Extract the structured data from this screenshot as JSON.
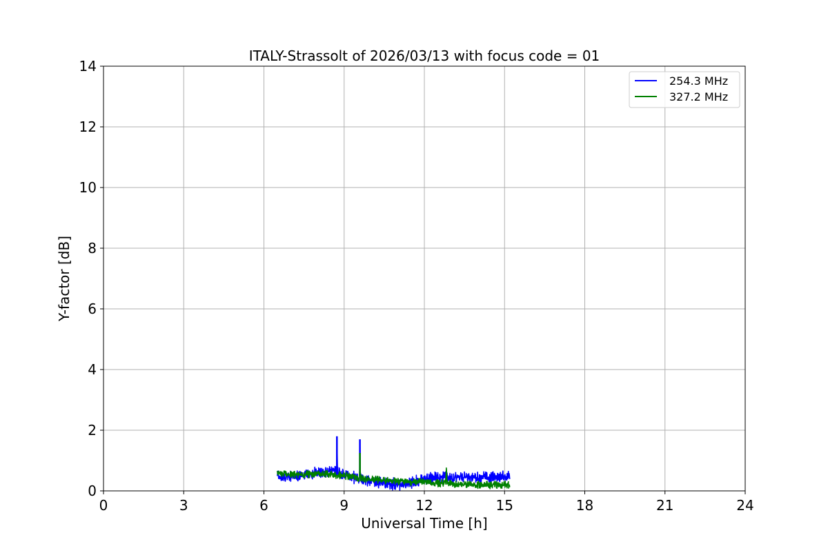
{
  "chart_data": {
    "type": "line",
    "title": "ITALY-Strassolt of 2026/03/13 with focus code = 01",
    "xlabel": "Universal Time [h]",
    "ylabel": "Y-factor [dB]",
    "xlim": [
      0,
      24
    ],
    "ylim": [
      0,
      14
    ],
    "xticks": [
      0,
      3,
      6,
      9,
      12,
      15,
      18,
      21,
      24
    ],
    "yticks": [
      0,
      2,
      4,
      6,
      8,
      10,
      12,
      14
    ],
    "grid": true,
    "legend_position": "top-right",
    "series": [
      {
        "name": "254.3 MHz",
        "color": "#0000ff",
        "x": [
          6.5,
          6.9,
          7.3,
          7.7,
          8.1,
          8.5,
          8.72,
          8.73,
          8.75,
          9.0,
          9.3,
          9.58,
          9.59,
          9.61,
          9.9,
          10.3,
          10.7,
          11.1,
          11.5,
          11.8,
          12.1,
          12.4,
          12.8,
          13.2,
          13.6,
          14.0,
          14.4,
          14.8,
          15.2
        ],
        "y": [
          0.5,
          0.45,
          0.5,
          0.55,
          0.6,
          0.65,
          0.65,
          1.8,
          0.65,
          0.55,
          0.45,
          0.4,
          1.7,
          0.4,
          0.35,
          0.3,
          0.25,
          0.2,
          0.25,
          0.35,
          0.4,
          0.45,
          0.45,
          0.45,
          0.45,
          0.45,
          0.45,
          0.45,
          0.45
        ],
        "spread": 0.22
      },
      {
        "name": "327.2 MHz",
        "color": "#008000",
        "x": [
          6.5,
          6.9,
          7.3,
          7.7,
          8.1,
          8.5,
          9.0,
          9.3,
          9.58,
          9.59,
          9.61,
          9.9,
          10.3,
          10.7,
          11.1,
          11.5,
          11.8,
          12.1,
          12.4,
          12.8,
          12.82,
          12.85,
          13.2,
          13.6,
          14.0,
          14.4,
          14.8,
          15.2
        ],
        "y": [
          0.55,
          0.55,
          0.55,
          0.55,
          0.55,
          0.55,
          0.5,
          0.45,
          0.4,
          1.25,
          0.4,
          0.4,
          0.35,
          0.35,
          0.3,
          0.3,
          0.3,
          0.3,
          0.25,
          0.25,
          0.85,
          0.25,
          0.2,
          0.2,
          0.2,
          0.2,
          0.2,
          0.2
        ],
        "spread": 0.14
      }
    ]
  }
}
